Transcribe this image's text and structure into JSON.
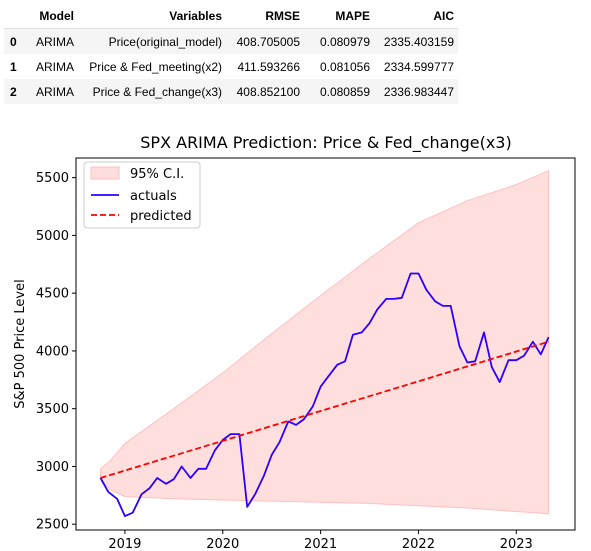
{
  "table": {
    "columns": [
      "",
      "Model",
      "Variables",
      "RMSE",
      "MAPE",
      "AIC"
    ],
    "rows": [
      {
        "index": "0",
        "model": "ARIMA",
        "variables": "Price(original_model)",
        "rmse": "408.705005",
        "mape": "0.080979",
        "aic": "2335.403159"
      },
      {
        "index": "1",
        "model": "ARIMA",
        "variables": "Price & Fed_meeting(x2)",
        "rmse": "411.593266",
        "mape": "0.081056",
        "aic": "2334.599777"
      },
      {
        "index": "2",
        "model": "ARIMA",
        "variables": "Price & Fed_change(x3)",
        "rmse": "408.852100",
        "mape": "0.080859",
        "aic": "2336.983447"
      }
    ]
  },
  "colors": {
    "actuals": "#2b00ff",
    "predicted": "#ff0000",
    "ci_fill": "#ffdede",
    "ci_edge": "#ffc0c0"
  },
  "chart_data": {
    "type": "line",
    "title": "SPX ARIMA Prediction: Price & Fed_change(x3)",
    "xlabel": "",
    "ylabel": "S&P 500 Price Level",
    "xlim": [
      2018.5,
      2023.6
    ],
    "ylim": [
      2450,
      5670
    ],
    "xticks": [
      {
        "value": 2019,
        "label": "2019"
      },
      {
        "value": 2020,
        "label": "2020"
      },
      {
        "value": 2021,
        "label": "2021"
      },
      {
        "value": 2022,
        "label": "2022"
      },
      {
        "value": 2023,
        "label": "2023"
      }
    ],
    "yticks": [
      {
        "value": 2500,
        "label": "2500"
      },
      {
        "value": 3000,
        "label": "3000"
      },
      {
        "value": 3500,
        "label": "3500"
      },
      {
        "value": 4000,
        "label": "4000"
      },
      {
        "value": 4500,
        "label": "4500"
      },
      {
        "value": 5000,
        "label": "5000"
      },
      {
        "value": 5500,
        "label": "5500"
      }
    ],
    "grid": false,
    "legend": {
      "position": "top-left",
      "entries": [
        {
          "label": "95% C.I.",
          "kind": "patch"
        },
        {
          "label": "actuals",
          "kind": "line"
        },
        {
          "label": "predicted",
          "kind": "dashed-line"
        }
      ]
    },
    "series": [
      {
        "name": "actuals",
        "x": [
          2018.75,
          2018.83,
          2018.92,
          2019.0,
          2019.08,
          2019.17,
          2019.25,
          2019.33,
          2019.42,
          2019.5,
          2019.58,
          2019.67,
          2019.75,
          2019.83,
          2019.92,
          2020.0,
          2020.08,
          2020.17,
          2020.25,
          2020.33,
          2020.42,
          2020.5,
          2020.58,
          2020.67,
          2020.75,
          2020.83,
          2020.92,
          2021.0,
          2021.08,
          2021.17,
          2021.25,
          2021.33,
          2021.42,
          2021.5,
          2021.58,
          2021.67,
          2021.75,
          2021.83,
          2021.92,
          2022.0,
          2022.08,
          2022.17,
          2022.25,
          2022.33,
          2022.42,
          2022.5,
          2022.58,
          2022.67,
          2022.75,
          2022.83,
          2022.92,
          2023.0,
          2023.08,
          2023.17,
          2023.25,
          2023.33
        ],
        "values": [
          2900,
          2780,
          2720,
          2570,
          2600,
          2760,
          2810,
          2900,
          2850,
          2890,
          3000,
          2900,
          2980,
          2980,
          3140,
          3230,
          3280,
          3280,
          2650,
          2760,
          2920,
          3100,
          3210,
          3390,
          3360,
          3410,
          3520,
          3690,
          3780,
          3880,
          3910,
          4140,
          4160,
          4240,
          4360,
          4450,
          4450,
          4460,
          4670,
          4670,
          4530,
          4430,
          4390,
          4390,
          4040,
          3900,
          3910,
          4160,
          3860,
          3730,
          3920,
          3920,
          3960,
          4080,
          3970,
          4120
        ]
      },
      {
        "name": "predicted",
        "x": [
          2018.75,
          2023.33
        ],
        "values": [
          2900,
          4080
        ]
      }
    ],
    "band": {
      "name": "95% C.I.",
      "x": [
        2018.75,
        2018.85,
        2019.0,
        2019.5,
        2020.0,
        2020.5,
        2021.0,
        2021.5,
        2022.0,
        2022.5,
        2023.0,
        2023.33
      ],
      "lower": [
        2900,
        2800,
        2740,
        2720,
        2710,
        2700,
        2690,
        2680,
        2660,
        2640,
        2610,
        2590
      ],
      "upper": [
        2980,
        3050,
        3200,
        3500,
        3810,
        4150,
        4480,
        4800,
        5110,
        5300,
        5440,
        5560
      ]
    }
  }
}
